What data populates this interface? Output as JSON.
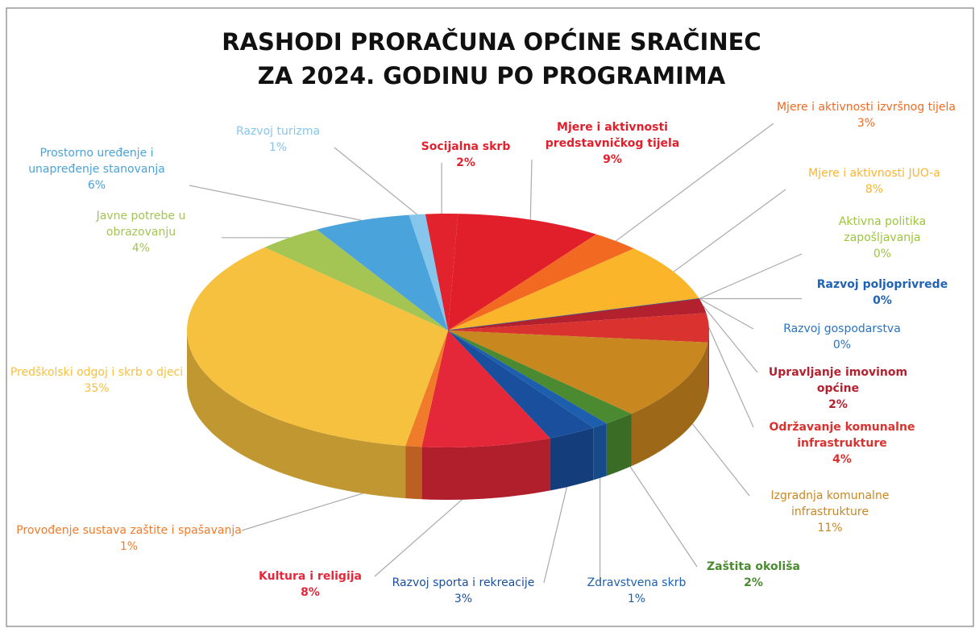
{
  "chart_data": {
    "type": "pie",
    "title": [
      "RASHODI PRORAČUNA OPĆINE SRAČINEC",
      "ZA 2024. GODINU PO PROGRAMIMA"
    ],
    "categories": [
      "Socijalna skrb",
      "Mjere i aktivnosti predstavničkog tijela",
      "Mjere i aktivnosti izvršnog tijela",
      "Mjere i aktivnosti JUO-a",
      "Aktivna politika zapošljavanja",
      "Razvoj poljoprivrede",
      "Razvoj gospodarstva",
      "Upravljanje imovinom općine",
      "Održavanje komunalne infrastrukture",
      "Izgradnja komunalne infrastrukture",
      "Zaštita okoliša",
      "Zdravstvena skrb",
      "Razvoj sporta i rekreacije",
      "Kultura i religija",
      "Provođenje sustava zaštite i spašavanja",
      "Predškolski odgoj i skrb o djeci",
      "Javne potrebe u obrazovanju",
      "Prostorno uređenje i unapređenje stanovanja",
      "Razvoj turizma"
    ],
    "values": [
      2,
      9,
      3,
      8,
      0,
      0,
      0,
      2,
      4,
      11,
      2,
      1,
      3,
      8,
      1,
      35,
      4,
      6,
      1
    ],
    "value_labels": [
      "2%",
      "9%",
      "3%",
      "8%",
      "0%",
      "0%",
      "0%",
      "2%",
      "4%",
      "11%",
      "2%",
      "1%",
      "3%",
      "8%",
      "1%",
      "35%",
      "4%",
      "6%",
      "1%"
    ],
    "colors": [
      "#e2232d",
      "#e11f2b",
      "#f26a21",
      "#fbb52b",
      "#9cc53c",
      "#1f64b4",
      "#2a73c2",
      "#b3202e",
      "#d9322f",
      "#c9871f",
      "#4b8a30",
      "#1d5fae",
      "#1a4f9e",
      "#e42839",
      "#f07b2b",
      "#f6c13f",
      "#a4c454",
      "#4aa3da",
      "#86c6ec"
    ]
  }
}
